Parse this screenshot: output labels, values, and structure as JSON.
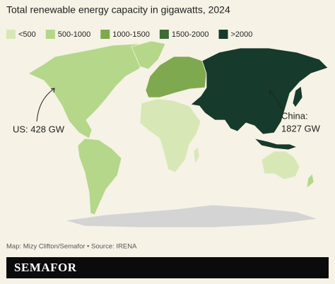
{
  "title": "Total renewable energy capacity in gigawatts, 2024",
  "legend": {
    "items": [
      {
        "label": "<500",
        "color": "#d8e7b6"
      },
      {
        "label": "500-1000",
        "color": "#b4d78a"
      },
      {
        "label": "1000-1500",
        "color": "#7ea94e"
      },
      {
        "label": "1500-2000",
        "color": "#3e6a35"
      },
      {
        "label": ">2000",
        "color": "#163a2b"
      }
    ]
  },
  "annotations": {
    "us": "US: 428 GW",
    "china": [
      "China:",
      "1827 GW"
    ]
  },
  "source": "Map: Mizy Clifton/Semafor • Source: IRENA",
  "brand": "SEMAFOR"
}
